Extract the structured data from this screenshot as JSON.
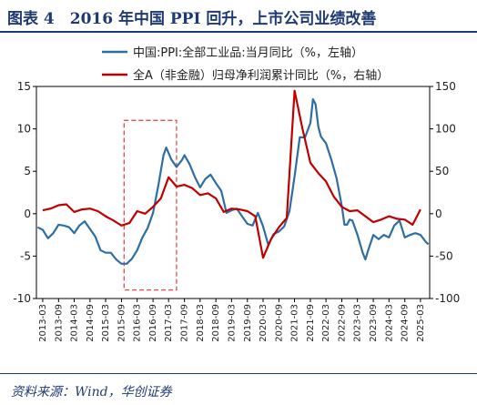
{
  "header": {
    "title": "图表 4　2016 年中国 PPI 回升，上市公司业绩改善"
  },
  "footer": {
    "source": "资料来源：Wind，华创证券"
  },
  "colors": {
    "ppi": "#2f6ea2",
    "profit": "#c00000",
    "highlight": "#e53935",
    "frame": "#000000"
  },
  "chart_data": {
    "type": "line",
    "title": "",
    "xlabel": "",
    "ylabel_left": "",
    "ylabel_right": "",
    "ylim_left": [
      -10,
      15
    ],
    "ylim_right": [
      -100,
      150
    ],
    "yticks_left": [
      -10,
      -5,
      0,
      5,
      10,
      15
    ],
    "yticks_right": [
      -100,
      -50,
      0,
      50,
      100,
      150
    ],
    "yticklabels_left": [
      "-10",
      "-5",
      "0",
      "5",
      "10",
      "15"
    ],
    "yticklabels_right": [
      "-100",
      "-50",
      "0",
      "50",
      "100",
      "150"
    ],
    "xticklabels": [
      "2013-03",
      "2013-09",
      "2014-03",
      "2014-09",
      "2015-03",
      "2015-09",
      "2016-03",
      "2016-09",
      "2017-03",
      "2017-09",
      "2018-03",
      "2018-09",
      "2019-03",
      "2019-09",
      "2020-03",
      "2020-09",
      "2021-03",
      "2021-09",
      "2022-03",
      "2022-09",
      "2023-03",
      "2023-09",
      "2024-03",
      "2024-09",
      "2025-03"
    ],
    "grid": false,
    "legend_position": "top-right",
    "highlight_box": {
      "x_start": "2015-10",
      "x_end": "2017-06",
      "y_range": [
        -9,
        11
      ],
      "style": "dashed"
    },
    "series": [
      {
        "name": "中国:PPI:全部工业品:当月同比（%，左轴）",
        "axis": "left",
        "points": [
          [
            "2013-01",
            -1.6
          ],
          [
            "2013-03",
            -1.9
          ],
          [
            "2013-05",
            -2.9
          ],
          [
            "2013-07",
            -2.3
          ],
          [
            "2013-09",
            -1.3
          ],
          [
            "2013-11",
            -1.4
          ],
          [
            "2014-01",
            -1.6
          ],
          [
            "2014-03",
            -2.3
          ],
          [
            "2014-05",
            -1.4
          ],
          [
            "2014-07",
            -0.9
          ],
          [
            "2014-09",
            -1.8
          ],
          [
            "2014-11",
            -2.7
          ],
          [
            "2015-01",
            -4.3
          ],
          [
            "2015-03",
            -4.6
          ],
          [
            "2015-05",
            -4.6
          ],
          [
            "2015-07",
            -5.4
          ],
          [
            "2015-09",
            -5.9
          ],
          [
            "2015-11",
            -5.9
          ],
          [
            "2016-01",
            -5.3
          ],
          [
            "2016-03",
            -4.3
          ],
          [
            "2016-05",
            -2.8
          ],
          [
            "2016-07",
            -1.7
          ],
          [
            "2016-09",
            0.1
          ],
          [
            "2016-11",
            3.3
          ],
          [
            "2017-01",
            6.9
          ],
          [
            "2017-02",
            7.8
          ],
          [
            "2017-04",
            6.4
          ],
          [
            "2017-06",
            5.5
          ],
          [
            "2017-08",
            6.3
          ],
          [
            "2017-09",
            6.9
          ],
          [
            "2017-11",
            5.8
          ],
          [
            "2018-01",
            4.3
          ],
          [
            "2018-03",
            3.1
          ],
          [
            "2018-05",
            4.1
          ],
          [
            "2018-07",
            4.6
          ],
          [
            "2018-09",
            3.6
          ],
          [
            "2018-11",
            2.7
          ],
          [
            "2019-01",
            0.1
          ],
          [
            "2019-03",
            0.4
          ],
          [
            "2019-05",
            0.6
          ],
          [
            "2019-07",
            -0.3
          ],
          [
            "2019-09",
            -1.2
          ],
          [
            "2019-11",
            -1.4
          ],
          [
            "2020-01",
            0.1
          ],
          [
            "2020-03",
            -1.5
          ],
          [
            "2020-05",
            -3.7
          ],
          [
            "2020-07",
            -2.4
          ],
          [
            "2020-09",
            -2.1
          ],
          [
            "2020-11",
            -1.5
          ],
          [
            "2021-01",
            0.3
          ],
          [
            "2021-03",
            4.4
          ],
          [
            "2021-05",
            9.0
          ],
          [
            "2021-07",
            9.0
          ],
          [
            "2021-09",
            10.7
          ],
          [
            "2021-10",
            13.5
          ],
          [
            "2021-11",
            12.9
          ],
          [
            "2021-12",
            10.3
          ],
          [
            "2022-01",
            9.1
          ],
          [
            "2022-03",
            8.3
          ],
          [
            "2022-05",
            6.4
          ],
          [
            "2022-07",
            4.2
          ],
          [
            "2022-09",
            0.9
          ],
          [
            "2022-10",
            -1.3
          ],
          [
            "2022-11",
            -1.3
          ],
          [
            "2022-12",
            -0.7
          ],
          [
            "2023-01",
            -0.8
          ],
          [
            "2023-03",
            -2.5
          ],
          [
            "2023-05",
            -4.6
          ],
          [
            "2023-06",
            -5.4
          ],
          [
            "2023-07",
            -4.4
          ],
          [
            "2023-09",
            -2.5
          ],
          [
            "2023-11",
            -3.0
          ],
          [
            "2024-01",
            -2.5
          ],
          [
            "2024-03",
            -2.8
          ],
          [
            "2024-05",
            -1.4
          ],
          [
            "2024-07",
            -0.8
          ],
          [
            "2024-09",
            -2.8
          ],
          [
            "2024-11",
            -2.5
          ],
          [
            "2025-01",
            -2.3
          ],
          [
            "2025-03",
            -2.5
          ],
          [
            "2025-05",
            -3.3
          ],
          [
            "2025-06",
            -3.6
          ]
        ]
      },
      {
        "name": "全A（非金融）归母净利润累计同比（%，右轴）",
        "axis": "right",
        "points": [
          [
            "2013-03",
            4
          ],
          [
            "2013-06",
            6
          ],
          [
            "2013-09",
            10
          ],
          [
            "2013-12",
            11
          ],
          [
            "2014-03",
            2
          ],
          [
            "2014-06",
            5
          ],
          [
            "2014-09",
            6
          ],
          [
            "2014-12",
            3
          ],
          [
            "2015-03",
            -3
          ],
          [
            "2015-06",
            -8
          ],
          [
            "2015-09",
            -14
          ],
          [
            "2015-12",
            -11
          ],
          [
            "2016-03",
            3
          ],
          [
            "2016-06",
            0
          ],
          [
            "2016-09",
            8
          ],
          [
            "2016-12",
            18
          ],
          [
            "2017-03",
            43
          ],
          [
            "2017-06",
            32
          ],
          [
            "2017-09",
            34
          ],
          [
            "2017-12",
            30
          ],
          [
            "2018-03",
            22
          ],
          [
            "2018-06",
            24
          ],
          [
            "2018-09",
            18
          ],
          [
            "2018-12",
            2
          ],
          [
            "2019-03",
            6
          ],
          [
            "2019-06",
            5
          ],
          [
            "2019-09",
            3
          ],
          [
            "2019-12",
            -3
          ],
          [
            "2020-03",
            -52
          ],
          [
            "2020-06",
            -30
          ],
          [
            "2020-09",
            -16
          ],
          [
            "2020-12",
            -5
          ],
          [
            "2021-03",
            145
          ],
          [
            "2021-06",
            100
          ],
          [
            "2021-09",
            60
          ],
          [
            "2021-12",
            48
          ],
          [
            "2022-03",
            38
          ],
          [
            "2022-06",
            20
          ],
          [
            "2022-09",
            8
          ],
          [
            "2022-12",
            3
          ],
          [
            "2023-03",
            4
          ],
          [
            "2023-06",
            -3
          ],
          [
            "2023-09",
            -10
          ],
          [
            "2023-12",
            -7
          ],
          [
            "2024-03",
            -3
          ],
          [
            "2024-06",
            -6
          ],
          [
            "2024-09",
            -7
          ],
          [
            "2024-12",
            -13
          ],
          [
            "2025-03",
            5
          ]
        ]
      }
    ]
  }
}
